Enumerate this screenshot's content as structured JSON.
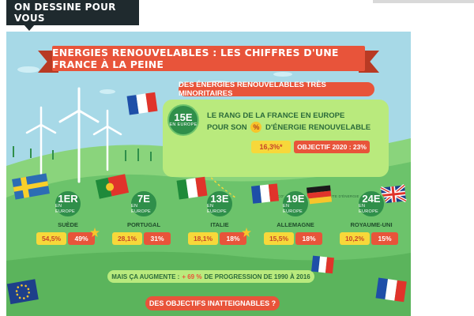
{
  "header": {
    "tab_label": "ON DESSINE POUR VOUS"
  },
  "banner": {
    "title": "ENERGIES RENOUVELABLES : LES CHIFFRES D'UNE FRANCE À LA PEINE"
  },
  "subtitle": "DES ÉNERGIES RENOUVELABLES TRÈS MINORITAIRES",
  "france": {
    "rank": "15E",
    "rank_sub": "EN EUROPE",
    "line1": "LE RANG DE LA FRANCE EN EUROPE",
    "line2_a": "POUR SON",
    "percent_symbol": "%",
    "line2_b": "D'ÉNERGIE RENOUVELABLE",
    "value": "16,3%*",
    "objective": "OBJECTIF 2020 : 23%",
    "note": "*DE LA CONSOMMATION FINALE BRUTE D'ÉNERGIE"
  },
  "countries": [
    {
      "rank": "1ER",
      "sub": "EN EUROPE",
      "name": "SUÈDE",
      "value": "54,5%",
      "target": "49%"
    },
    {
      "rank": "7E",
      "sub": "EN EUROPE",
      "name": "PORTUGAL",
      "value": "28,1%",
      "target": "31%"
    },
    {
      "rank": "13E",
      "sub": "EN EUROPE",
      "name": "ITALIE",
      "value": "18,1%",
      "target": "18%"
    },
    {
      "rank": "19E",
      "sub": "EN EUROPE",
      "name": "ALLEMAGNE",
      "value": "15,5%",
      "target": "18%"
    },
    {
      "rank": "24E",
      "sub": "EN EUROPE",
      "name": "ROYAUME-UNI",
      "value": "10,2%",
      "target": "15%"
    }
  ],
  "progress": {
    "prefix": "MAIS ÇA AUGMENTE :",
    "highlight": "+ 69 %",
    "suffix": "DE PROGRESSION DE 1990 À 2016"
  },
  "question": "DES OBJECTIFS INATTEIGNABLES ?",
  "colors": {
    "sky": "#a7d9e7",
    "grass": "#6cc36b",
    "accent": "#e8543a",
    "yellow": "#f7d83a",
    "badge": "#2f8f4a"
  }
}
